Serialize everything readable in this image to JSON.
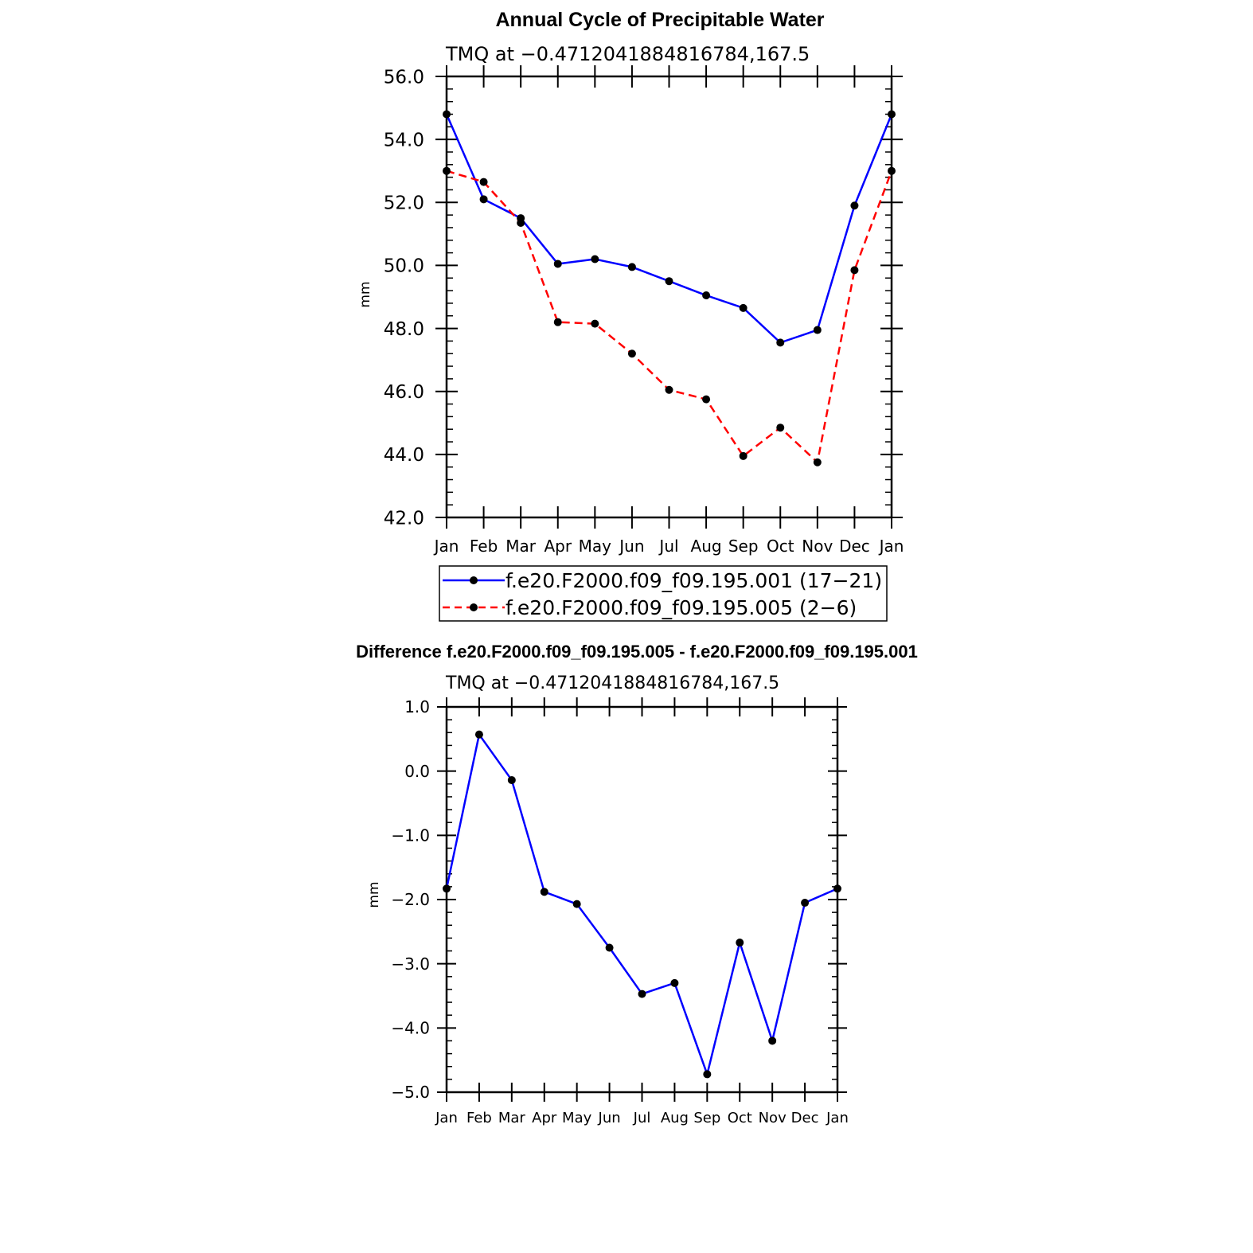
{
  "chart_data": [
    {
      "type": "line",
      "title": "Annual Cycle of Precipitable Water",
      "subtitle": "TMQ at −0.4712041884816784,167.5",
      "ylabel": "mm",
      "xlabel": "",
      "categories": [
        "Jan",
        "Feb",
        "Mar",
        "Apr",
        "May",
        "Jun",
        "Jul",
        "Aug",
        "Sep",
        "Oct",
        "Nov",
        "Dec",
        "Jan"
      ],
      "ylim": [
        42.0,
        56.0
      ],
      "yticks": [
        42.0,
        44.0,
        46.0,
        48.0,
        50.0,
        52.0,
        54.0,
        56.0
      ],
      "ytick_labels": [
        "42.0",
        "44.0",
        "46.0",
        "48.0",
        "50.0",
        "52.0",
        "54.0",
        "56.0"
      ],
      "legend_position": "bottom",
      "series": [
        {
          "name": "f.e20.F2000.f09_f09.195.001 (17−21)",
          "color": "#0000ff",
          "dash": "solid",
          "values": [
            54.8,
            52.1,
            51.5,
            50.05,
            50.2,
            49.95,
            49.5,
            49.05,
            48.65,
            47.55,
            47.95,
            51.9,
            54.8
          ]
        },
        {
          "name": "f.e20.F2000.f09_f09.195.005 (2−6)",
          "color": "#ff0000",
          "dash": "dashed",
          "values": [
            53.0,
            52.65,
            51.35,
            48.2,
            48.15,
            47.2,
            46.05,
            45.75,
            43.95,
            44.85,
            43.75,
            49.85,
            53.0
          ]
        }
      ]
    },
    {
      "type": "line",
      "title": "Difference f.e20.F2000.f09_f09.195.005 - f.e20.F2000.f09_f09.195.001",
      "subtitle": "TMQ at −0.4712041884816784,167.5",
      "ylabel": "mm",
      "xlabel": "",
      "categories": [
        "Jan",
        "Feb",
        "Mar",
        "Apr",
        "May",
        "Jun",
        "Jul",
        "Aug",
        "Sep",
        "Oct",
        "Nov",
        "Dec",
        "Jan"
      ],
      "ylim": [
        -5.0,
        1.0
      ],
      "yticks": [
        -5.0,
        -4.0,
        -3.0,
        -2.0,
        -1.0,
        0.0,
        1.0
      ],
      "ytick_labels": [
        "−5.0",
        "−4.0",
        "−3.0",
        "−2.0",
        "−1.0",
        "0.0",
        "1.0"
      ],
      "series": [
        {
          "name": "difference",
          "color": "#0000ff",
          "dash": "solid",
          "values": [
            -1.83,
            0.57,
            -0.14,
            -1.88,
            -2.07,
            -2.75,
            -3.47,
            -3.3,
            -4.72,
            -2.67,
            -4.2,
            -2.05,
            -1.83
          ]
        }
      ]
    }
  ]
}
